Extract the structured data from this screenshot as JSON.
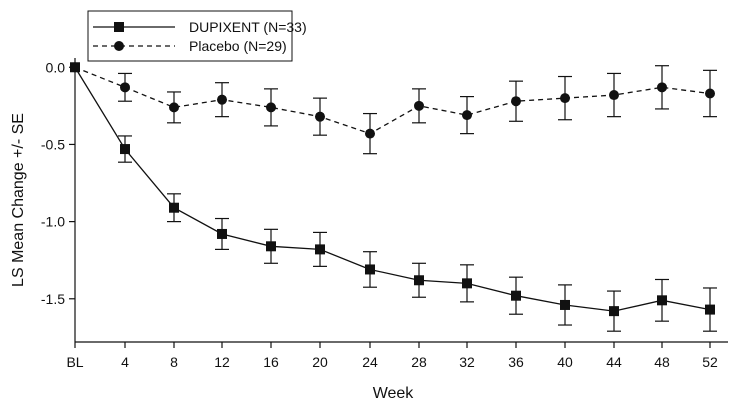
{
  "chart_data": {
    "type": "line",
    "title": "",
    "xlabel": "Week",
    "ylabel": "LS Mean Change +/- SE",
    "categories": [
      "BL",
      "4",
      "8",
      "12",
      "16",
      "20",
      "24",
      "28",
      "32",
      "36",
      "40",
      "44",
      "48",
      "52"
    ],
    "ylim": [
      -1.78,
      0.06
    ],
    "yticks": [
      "0.0",
      "-0.5",
      "-1.0",
      "-1.5"
    ],
    "legend_position": "top-left",
    "grid": false,
    "series": [
      {
        "name": "DUPIXENT (N=33)",
        "line_style": "solid",
        "marker": "square",
        "color": "#111111",
        "values": [
          0.0,
          -0.53,
          -0.91,
          -1.08,
          -1.16,
          -1.18,
          -1.31,
          -1.38,
          -1.4,
          -1.48,
          -1.54,
          -1.58,
          -1.51,
          -1.57
        ],
        "se": [
          0.0,
          0.085,
          0.09,
          0.1,
          0.11,
          0.11,
          0.115,
          0.11,
          0.12,
          0.12,
          0.13,
          0.13,
          0.135,
          0.14
        ]
      },
      {
        "name": "Placebo (N=29)",
        "line_style": "dashed",
        "marker": "circle",
        "color": "#111111",
        "values": [
          0.0,
          -0.13,
          -0.26,
          -0.21,
          -0.26,
          -0.32,
          -0.43,
          -0.25,
          -0.31,
          -0.22,
          -0.2,
          -0.18,
          -0.13,
          -0.17
        ],
        "se": [
          0.0,
          0.09,
          0.1,
          0.11,
          0.12,
          0.12,
          0.13,
          0.11,
          0.12,
          0.13,
          0.14,
          0.14,
          0.14,
          0.15
        ]
      }
    ]
  }
}
